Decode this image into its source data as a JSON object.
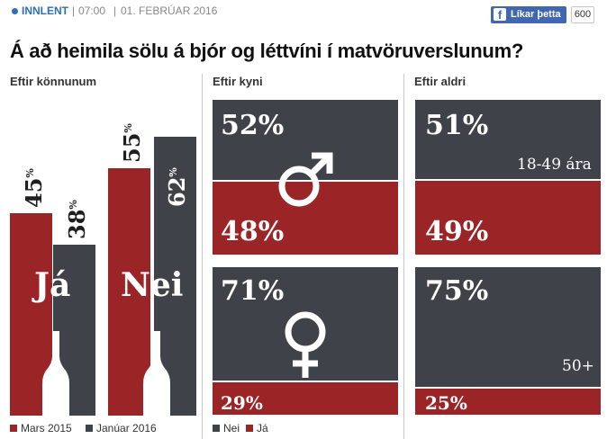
{
  "article": {
    "category": "INNLENT",
    "time": "07:00",
    "date": "01. FEBRÚAR 2016",
    "like_label": "Líkar þetta",
    "like_count": "600"
  },
  "title": "Á að heimila sölu á bjór og léttvíni í matvöruverslunum?",
  "sections": {
    "polls": "Eftir könnunum",
    "gender": "Eftir kyni",
    "age": "Eftir aldri"
  },
  "colors": {
    "ja": "#9b2426",
    "nei": "#3f4248"
  },
  "icons": {
    "male": "male-symbol-icon",
    "female": "female-symbol-icon",
    "bottle": "bottle-icon"
  },
  "chart_data": [
    {
      "type": "bar",
      "title": "Eftir könnunum",
      "categories": [
        "Já",
        "Nei"
      ],
      "series": [
        {
          "name": "Mars 2015",
          "values": [
            45,
            55
          ],
          "labels": [
            "45%",
            "55%"
          ]
        },
        {
          "name": "Janúar 2016",
          "values": [
            38,
            62
          ],
          "labels": [
            "38%",
            "62%"
          ]
        }
      ],
      "legend": [
        "Mars 2015",
        "Janúar 2016"
      ],
      "legend_position": "bottom-left"
    },
    {
      "type": "bar",
      "title": "Eftir kyni",
      "categories": [
        "male",
        "female"
      ],
      "series": [
        {
          "name": "Nei",
          "values": [
            52,
            71
          ],
          "labels": [
            "52%",
            "71%"
          ]
        },
        {
          "name": "Já",
          "values": [
            48,
            29
          ],
          "labels": [
            "48%",
            "29%"
          ]
        }
      ],
      "legend": [
        "Nei",
        "Já"
      ],
      "legend_position": "bottom-left"
    },
    {
      "type": "bar",
      "title": "Eftir aldri",
      "categories": [
        "18-49 ára",
        "50+"
      ],
      "series": [
        {
          "name": "Nei",
          "values": [
            51,
            75
          ],
          "labels": [
            "51%",
            "75%"
          ]
        },
        {
          "name": "Já",
          "values": [
            49,
            25
          ],
          "labels": [
            "49%",
            "25%"
          ]
        }
      ]
    }
  ]
}
